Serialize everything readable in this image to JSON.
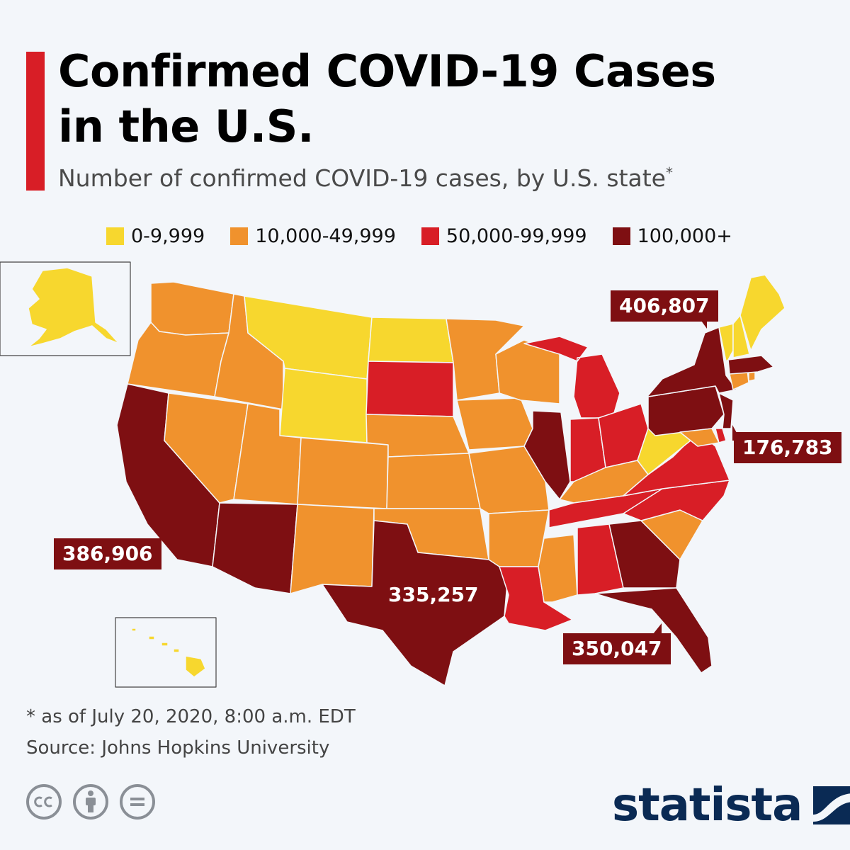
{
  "title": "Confirmed COVID-19 Cases in the U.S.",
  "subtitle": "Number of confirmed COVID-19 cases, by U.S. state",
  "subtitle_mark": "*",
  "legend": [
    {
      "label": "0-9,999",
      "color": "#f7d72e"
    },
    {
      "label": "10,000-49,999",
      "color": "#f0922d"
    },
    {
      "label": "50,000-99,999",
      "color": "#d81e26"
    },
    {
      "label": "100,000+",
      "color": "#7e0f12"
    }
  ],
  "callouts": {
    "new_york": "406,807",
    "new_jersey": "176,783",
    "california": "386,906",
    "texas": "335,257",
    "florida": "350,047"
  },
  "footnote": "* as of July 20, 2020, 8:00 a.m. EDT",
  "source": "Source: Johns Hopkins University",
  "license_icons": [
    "cc-icon",
    "attribution-icon",
    "no-derivatives-icon"
  ],
  "brand": "statista"
}
